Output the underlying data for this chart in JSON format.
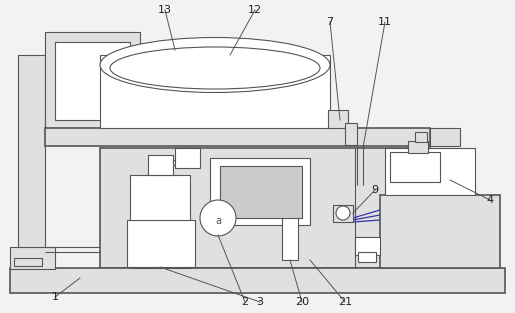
{
  "bg_color": "#f2f2f2",
  "line_color": "#555555",
  "fill_light": "#e0e0e0",
  "fill_mid": "#cccccc",
  "white": "#ffffff",
  "blue_line": "#3333aa",
  "figsize": [
    5.15,
    3.13
  ],
  "dpi": 100
}
